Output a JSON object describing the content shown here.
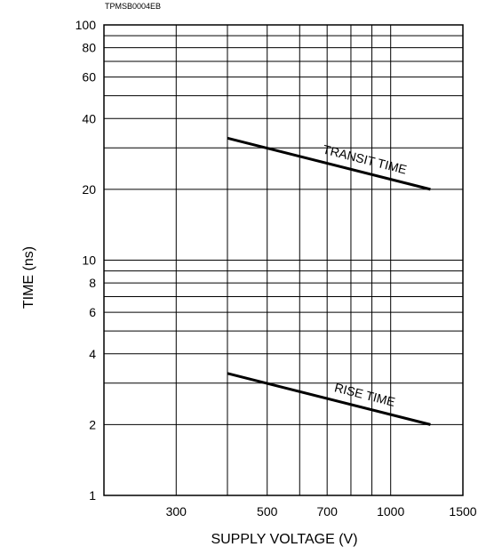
{
  "figure_code": "TPMSB0004EB",
  "chart_data": {
    "type": "line",
    "title": "",
    "xlabel": "SUPPLY VOLTAGE (V)",
    "ylabel": "TIME (ns)",
    "x_scale": "log",
    "y_scale": "log",
    "xlim": [
      200,
      1500
    ],
    "ylim": [
      1,
      100
    ],
    "grid": true,
    "x_ticks": [
      300,
      500,
      700,
      1000,
      1500
    ],
    "y_ticks": [
      1,
      2,
      4,
      6,
      8,
      10,
      20,
      40,
      60,
      80,
      100
    ],
    "series": [
      {
        "name": "TRANSIT TIME",
        "x": [
          400,
          1250
        ],
        "y": [
          33,
          20
        ]
      },
      {
        "name": "RISE TIME",
        "x": [
          400,
          1250
        ],
        "y": [
          3.3,
          2.0
        ]
      }
    ]
  }
}
